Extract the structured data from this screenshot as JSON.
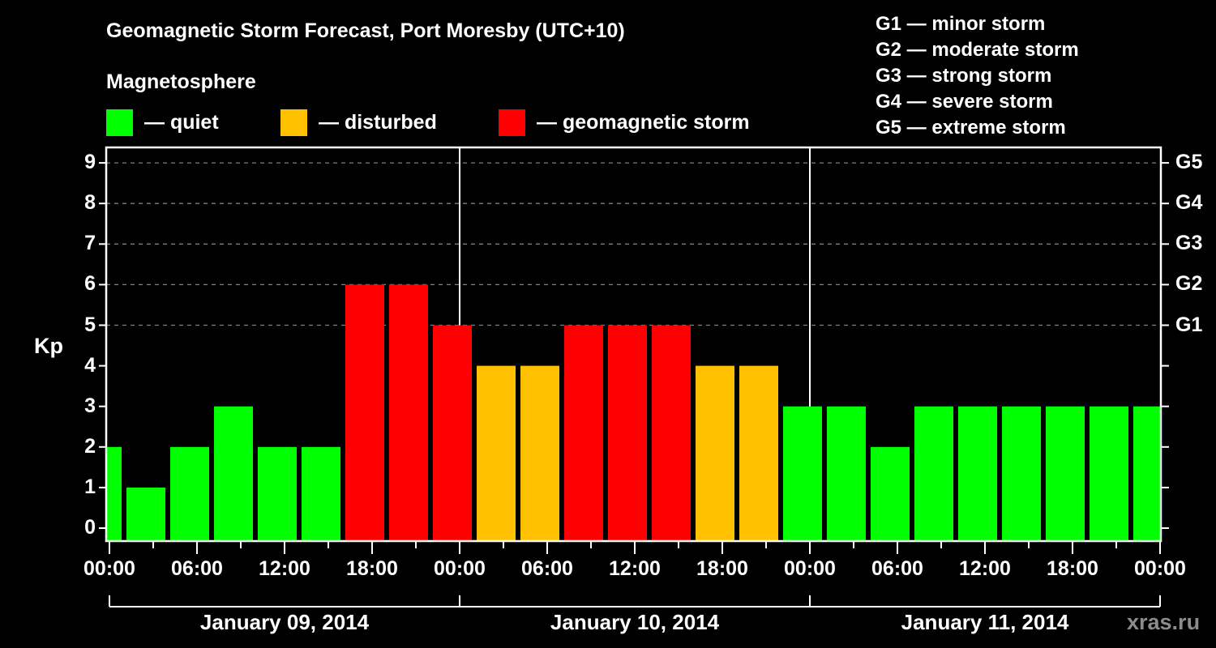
{
  "header": {
    "title": "Geomagnetic Storm Forecast, Port Moresby (UTC+10)",
    "subtitle": "Magnetosphere"
  },
  "legend": [
    {
      "label": "— quiet",
      "color": "#00ff00"
    },
    {
      "label": "— disturbed",
      "color": "#ffc000"
    },
    {
      "label": "— geomagnetic storm",
      "color": "#ff0000"
    }
  ],
  "g_scale_legend": [
    "G1 — minor storm",
    "G2 — moderate storm",
    "G3 — strong storm",
    "G4 — severe storm",
    "G5 — extreme storm"
  ],
  "axes": {
    "ylabel": "Kp",
    "y_ticks": [
      "0",
      "1",
      "2",
      "3",
      "4",
      "5",
      "6",
      "7",
      "8",
      "9"
    ],
    "right_ticks": [
      {
        "kp": 5,
        "label": "G1"
      },
      {
        "kp": 6,
        "label": "G2"
      },
      {
        "kp": 7,
        "label": "G3"
      },
      {
        "kp": 8,
        "label": "G4"
      },
      {
        "kp": 9,
        "label": "G5"
      }
    ],
    "x_ticks": [
      "00:00",
      "06:00",
      "12:00",
      "18:00",
      "00:00",
      "06:00",
      "12:00",
      "18:00",
      "00:00",
      "06:00",
      "12:00",
      "18:00",
      "00:00"
    ],
    "dates": [
      "January 09, 2014",
      "January 10, 2014",
      "January 11, 2014"
    ]
  },
  "watermark": "xras.ru",
  "colors": {
    "quiet": "#00ff00",
    "disturbed": "#ffc000",
    "storm": "#ff0000",
    "grid": "#808080",
    "axis": "#ffffff",
    "background": "#000000"
  },
  "chart_data": {
    "type": "bar",
    "title": "Geomagnetic Storm Forecast, Port Moresby (UTC+10)",
    "xlabel": "",
    "ylabel": "Kp",
    "ylim": [
      0,
      9
    ],
    "grid": "dashed horizontal at Kp 5-9",
    "categories": [
      "Jan 09 00:00",
      "Jan 09 03:00",
      "Jan 09 06:00",
      "Jan 09 09:00",
      "Jan 09 12:00",
      "Jan 09 15:00",
      "Jan 09 18:00",
      "Jan 09 21:00",
      "Jan 10 00:00",
      "Jan 10 03:00",
      "Jan 10 06:00",
      "Jan 10 09:00",
      "Jan 10 12:00",
      "Jan 10 15:00",
      "Jan 10 18:00",
      "Jan 10 21:00",
      "Jan 11 00:00",
      "Jan 11 03:00",
      "Jan 11 06:00",
      "Jan 11 09:00",
      "Jan 11 12:00",
      "Jan 11 15:00",
      "Jan 11 18:00",
      "Jan 11 21:00",
      "Jan 12 00:00"
    ],
    "values": [
      2,
      1,
      2,
      3,
      2,
      2,
      6,
      6,
      5,
      4,
      4,
      5,
      5,
      5,
      4,
      4,
      3,
      3,
      2,
      3,
      3,
      3,
      3,
      3,
      3
    ],
    "status": [
      "quiet",
      "quiet",
      "quiet",
      "quiet",
      "quiet",
      "quiet",
      "storm",
      "storm",
      "storm",
      "disturbed",
      "disturbed",
      "storm",
      "storm",
      "storm",
      "disturbed",
      "disturbed",
      "quiet",
      "quiet",
      "quiet",
      "quiet",
      "quiet",
      "quiet",
      "quiet",
      "quiet",
      "quiet"
    ],
    "legend": [
      "quiet",
      "disturbed",
      "geomagnetic storm"
    ],
    "right_axis": {
      "5": "G1",
      "6": "G2",
      "7": "G3",
      "8": "G4",
      "9": "G5"
    }
  }
}
